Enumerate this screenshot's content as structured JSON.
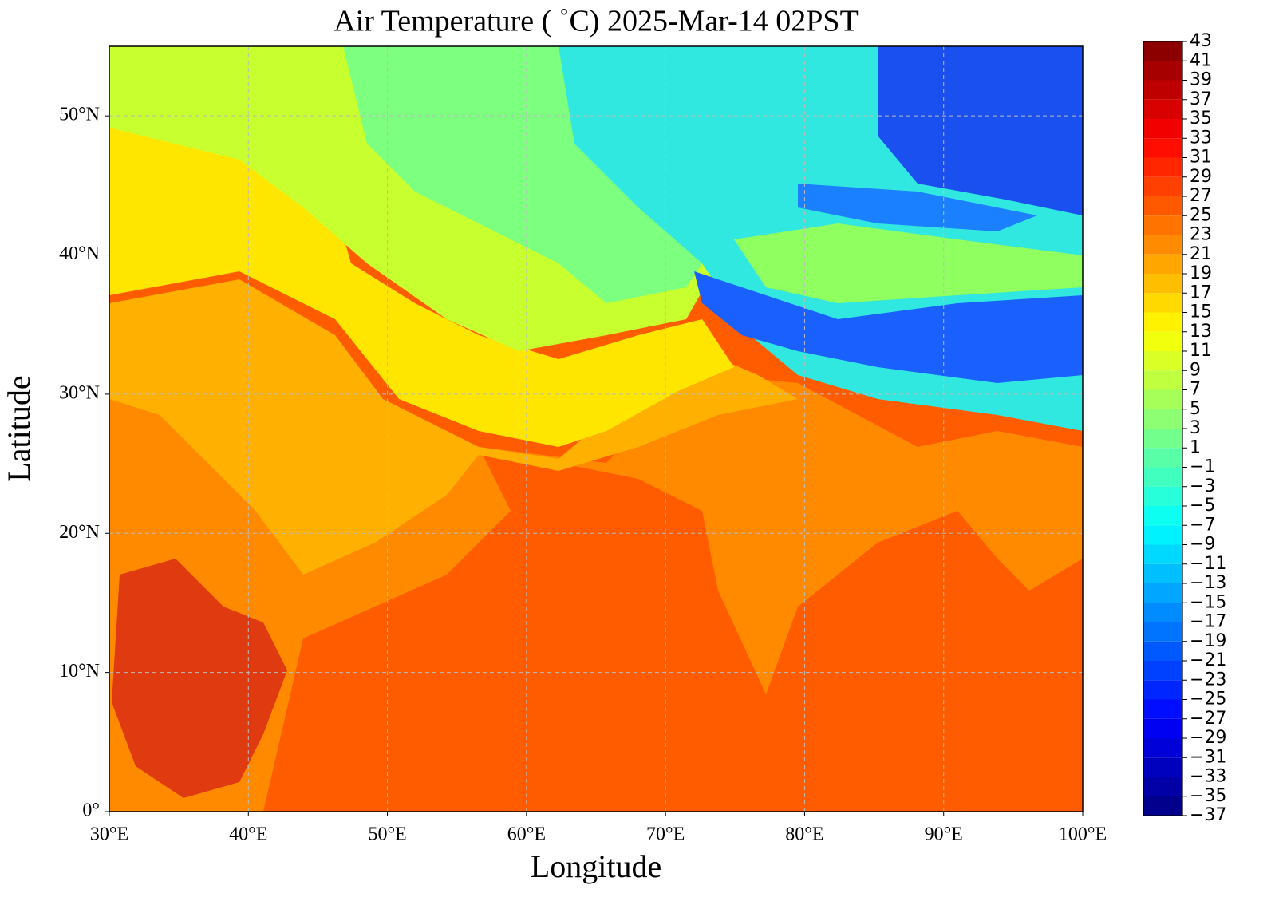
{
  "map": {
    "title": "Air Temperature ( ˚C)  2025-Mar-14 02PST",
    "x_label": "Longitude",
    "y_label": "Latitude",
    "xlim": [
      30,
      100
    ],
    "ylim": [
      0,
      55
    ],
    "grid": true,
    "xticks": [
      {
        "value": 30,
        "label": "30°E"
      },
      {
        "value": 40,
        "label": "40°E"
      },
      {
        "value": 50,
        "label": "50°E"
      },
      {
        "value": 60,
        "label": "60°E"
      },
      {
        "value": 70,
        "label": "70°E"
      },
      {
        "value": 80,
        "label": "80°E"
      },
      {
        "value": 90,
        "label": "90°E"
      },
      {
        "value": 100,
        "label": "100°E"
      }
    ],
    "yticks": [
      {
        "value": 0,
        "label": "0°"
      },
      {
        "value": 10,
        "label": "10°N"
      },
      {
        "value": 20,
        "label": "20°N"
      },
      {
        "value": 30,
        "label": "30°N"
      },
      {
        "value": 40,
        "label": "40°N"
      },
      {
        "value": 50,
        "label": "50°N"
      }
    ],
    "colorbar": {
      "lim": [
        -37,
        43
      ],
      "ticks": [
        43,
        41,
        39,
        37,
        35,
        33,
        31,
        29,
        27,
        25,
        23,
        21,
        19,
        17,
        15,
        13,
        11,
        9,
        7,
        5,
        3,
        1,
        {
          "value": -1,
          "label": "−1"
        },
        {
          "value": -3,
          "label": "−3"
        },
        {
          "value": -5,
          "label": "−5"
        },
        {
          "value": -7,
          "label": "−7"
        },
        {
          "value": -9,
          "label": "−9"
        },
        {
          "value": -11,
          "label": "−11"
        },
        {
          "value": -13,
          "label": "−13"
        },
        {
          "value": -15,
          "label": "−15"
        },
        {
          "value": -17,
          "label": "−17"
        },
        {
          "value": -19,
          "label": "−19"
        },
        {
          "value": -21,
          "label": "−21"
        },
        {
          "value": -23,
          "label": "−23"
        },
        {
          "value": -25,
          "label": "−25"
        },
        {
          "value": -27,
          "label": "−27"
        },
        {
          "value": -29,
          "label": "−29"
        },
        {
          "value": -31,
          "label": "−31"
        },
        {
          "value": -33,
          "label": "−33"
        },
        {
          "value": -35,
          "label": "−35"
        },
        {
          "value": -37,
          "label": "−37"
        }
      ]
    }
  }
}
